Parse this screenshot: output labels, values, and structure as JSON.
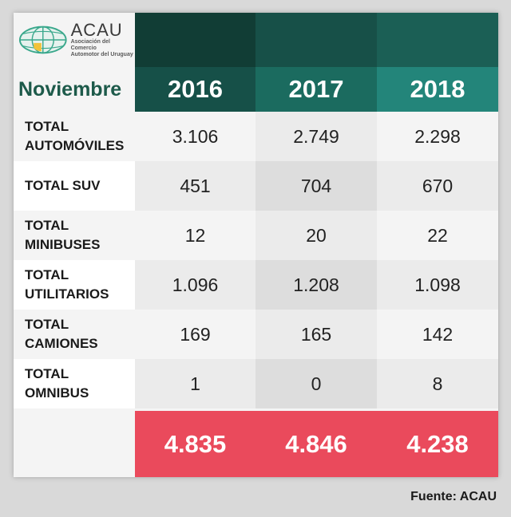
{
  "logo": {
    "name": "ACAU",
    "subtitle": "Asociación del Comercio\nAutomotor del Uruguay"
  },
  "month_label": "Noviembre",
  "colors": {
    "header_top": [
      "#113d35",
      "#175048",
      "#1b5f55"
    ],
    "header_year": [
      "#165048",
      "#1b6b5f",
      "#23857a"
    ],
    "total_bg": "#ea4a5c",
    "title_text": "#1d5a4a"
  },
  "chart_data": {
    "type": "table",
    "columns": [
      "2016",
      "2017",
      "2018"
    ],
    "rows": [
      {
        "label": "TOTAL\nAUTOMÓVILES",
        "values": [
          "3.106",
          "2.749",
          "2.298"
        ]
      },
      {
        "label": "TOTAL SUV",
        "values": [
          "451",
          "704",
          "670"
        ]
      },
      {
        "label": "TOTAL\nMINIBUSES",
        "values": [
          "12",
          "20",
          "22"
        ]
      },
      {
        "label": "TOTAL\nUTILITARIOS",
        "values": [
          "1.096",
          "1.208",
          "1.098"
        ]
      },
      {
        "label": "TOTAL\nCAMIONES",
        "values": [
          "169",
          "165",
          "142"
        ]
      },
      {
        "label": "TOTAL\nOMNIBUS",
        "values": [
          "1",
          "0",
          "8"
        ]
      }
    ],
    "totals": [
      "4.835",
      "4.846",
      "4.238"
    ]
  },
  "source": "Fuente: ACAU"
}
